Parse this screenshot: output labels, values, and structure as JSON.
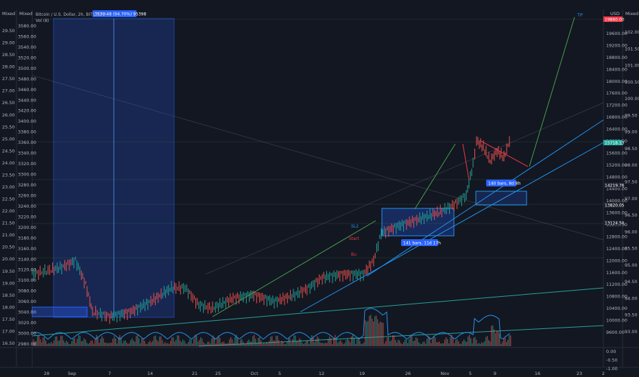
{
  "header": {
    "title": "Bitcoin / U.S. Dollar, 2h, BITSTAMP",
    "vol": "Vol (8)",
    "left_scale_label": "Mixed",
    "right_scale_label": "Mixed",
    "usd_label": "USD",
    "tooltip": "3539.48 (94.70%) 95398"
  },
  "axes": {
    "left_ticks": [
      "29.50",
      "29.00",
      "28.50",
      "28.00",
      "27.50",
      "27.00",
      "26.50",
      "26.00",
      "25.50",
      "25.00",
      "24.50",
      "24.00",
      "23.50",
      "23.00",
      "22.50",
      "22.00",
      "21.50",
      "21.00",
      "20.50",
      "20.00",
      "19.50",
      "19.00",
      "18.50",
      "18.00",
      "17.50",
      "17.00",
      "16.50"
    ],
    "left_ticks_inner": [
      "3580.00",
      "3560.00",
      "3540.00",
      "3520.00",
      "3500.00",
      "3480.00",
      "3460.00",
      "3440.00",
      "3420.00",
      "3400.00",
      "3380.00",
      "3360.00",
      "3340.00",
      "3320.00",
      "3300.00",
      "3280.00",
      "3260.00",
      "3240.00",
      "3220.00",
      "3200.00",
      "3180.00",
      "3160.00",
      "3140.00",
      "3120.00",
      "3100.00",
      "3080.00",
      "3060.00",
      "3040.00",
      "3020.00",
      "3000.00",
      "2980.00"
    ],
    "right_ticks_usd": [
      "19600.00",
      "19200.00",
      "18800.00",
      "18400.00",
      "18000.00",
      "17600.00",
      "17200.00",
      "16800.00",
      "16400.00",
      "16000.00",
      "15600.00",
      "15200.00",
      "14800.00",
      "14400.00",
      "14000.00",
      "13600.00",
      "13200.00",
      "12800.00",
      "12400.00",
      "12000.00",
      "11600.00",
      "11200.00",
      "10800.00",
      "10400.00",
      "10000.00",
      "9600.00"
    ],
    "right_ticks_outer": [
      "102.00",
      "101.50",
      "101.00",
      "100.50",
      "100.00",
      "99.50",
      "99.00",
      "98.50",
      "98.00",
      "97.50",
      "97.00",
      "96.50",
      "96.00",
      "95.50",
      "95.00",
      "94.50",
      "94.00",
      "93.50",
      "93.00"
    ],
    "right_ticks_bottom": [
      "0.00",
      "-0.50",
      "-1.00"
    ],
    "x_ticks": [
      "28",
      "Sep",
      "7",
      "14",
      "21",
      "25",
      "Oct",
      "5",
      "12",
      "19",
      "26",
      "Nov",
      "5",
      "9",
      "16",
      "23",
      "2"
    ]
  },
  "price_tags": [
    {
      "text": "19860.00",
      "color": "#f23645"
    },
    {
      "text": "15718.13",
      "color": "#26a69a"
    },
    {
      "text": "14219.76",
      "color": "#1e222d"
    },
    {
      "text": "13820.05",
      "color": "#1e222d"
    },
    {
      "text": "13124.50",
      "color": "#1e222d"
    }
  ],
  "annotations": {
    "tp": "TP",
    "sl2": "SL2",
    "start": "Start",
    "bu": "Bu",
    "bars1": "141 bars, 11d 17h",
    "bars2": "140 bars, 8d 8h"
  },
  "colors": {
    "bg": "#131722",
    "up": "#26a69a",
    "down": "#ef5350",
    "box": "#2962ff",
    "line": "#2196f3",
    "arrow": "#4caf50"
  }
}
